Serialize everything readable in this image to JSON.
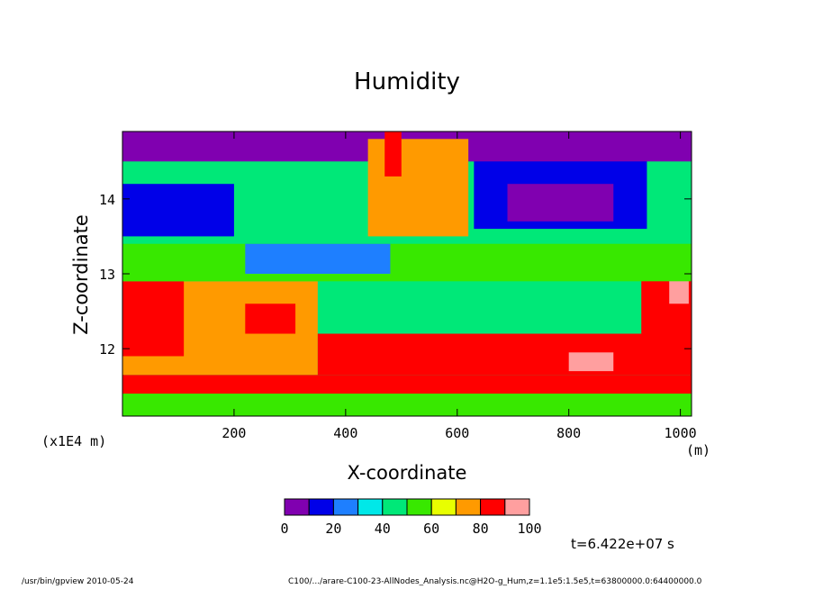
{
  "chart_data": {
    "type": "heatmap",
    "title": "Humidity",
    "xlabel": "X-coordinate",
    "ylabel": "Z-coordinate",
    "x_unit": "(m)",
    "y_scale_label": "(x1E4 m)",
    "xlim": [
      0,
      1020
    ],
    "ylim": [
      11.1,
      14.9
    ],
    "x_ticks": [
      200,
      400,
      600,
      800,
      1000
    ],
    "y_ticks": [
      12,
      13,
      14
    ],
    "colorbar": {
      "levels": [
        0,
        10,
        20,
        30,
        40,
        50,
        60,
        70,
        80,
        90,
        100
      ],
      "tick_labels": [
        "0",
        "20",
        "40",
        "60",
        "80",
        "100"
      ],
      "colors": [
        "#8000b0",
        "#0000e8",
        "#1e7fff",
        "#00e8e8",
        "#00e878",
        "#38e800",
        "#e8ff00",
        "#ff9a00",
        "#ff0000",
        "#ff9f9f"
      ]
    },
    "field_regions": [
      {
        "x": [
          0,
          1020
        ],
        "z": [
          11.1,
          11.4
        ],
        "value": 55
      },
      {
        "x": [
          0,
          1020
        ],
        "z": [
          11.4,
          11.65
        ],
        "value": 85
      },
      {
        "x": [
          0,
          350
        ],
        "z": [
          11.65,
          12.9
        ],
        "value": 75
      },
      {
        "x": [
          0,
          110
        ],
        "z": [
          11.9,
          12.9
        ],
        "value": 85
      },
      {
        "x": [
          220,
          310
        ],
        "z": [
          12.2,
          12.6
        ],
        "value": 85
      },
      {
        "x": [
          350,
          1020
        ],
        "z": [
          11.65,
          12.2
        ],
        "value": 85
      },
      {
        "x": [
          800,
          880
        ],
        "z": [
          11.7,
          11.95
        ],
        "value": 95
      },
      {
        "x": [
          930,
          1020
        ],
        "z": [
          12.0,
          13.2
        ],
        "value": 85
      },
      {
        "x": [
          980,
          1015
        ],
        "z": [
          12.6,
          13.1
        ],
        "value": 95
      },
      {
        "x": [
          0,
          1020
        ],
        "z": [
          12.9,
          13.4
        ],
        "value": 50
      },
      {
        "x": [
          220,
          480
        ],
        "z": [
          13.0,
          13.4
        ],
        "value": 25
      },
      {
        "x": [
          0,
          200
        ],
        "z": [
          13.5,
          14.2
        ],
        "value": 15
      },
      {
        "x": [
          630,
          940
        ],
        "z": [
          13.6,
          14.6
        ],
        "value": 12
      },
      {
        "x": [
          690,
          880
        ],
        "z": [
          13.7,
          14.2
        ],
        "value": 5
      },
      {
        "x": [
          0,
          1020
        ],
        "z": [
          14.5,
          14.9
        ],
        "value": 5
      },
      {
        "x": [
          440,
          620
        ],
        "z": [
          13.5,
          14.8
        ],
        "value": 70
      },
      {
        "x": [
          470,
          500
        ],
        "z": [
          14.3,
          14.9
        ],
        "value": 85
      }
    ]
  },
  "labels": {
    "title": "Humidity",
    "xlabel": "X-coordinate",
    "ylabel": "Z-coordinate",
    "y_scale": "(x1E4 m)",
    "x_unit": "(m)",
    "timestamp": "t=6.422e+07 s",
    "footer_left": "/usr/bin/gpview  2010-05-24",
    "footer_right": "C100/.../arare-C100-23-AllNodes_Analysis.nc@H2O-g_Hum,z=1.1e5:1.5e5,t=63800000.0:64400000.0"
  }
}
